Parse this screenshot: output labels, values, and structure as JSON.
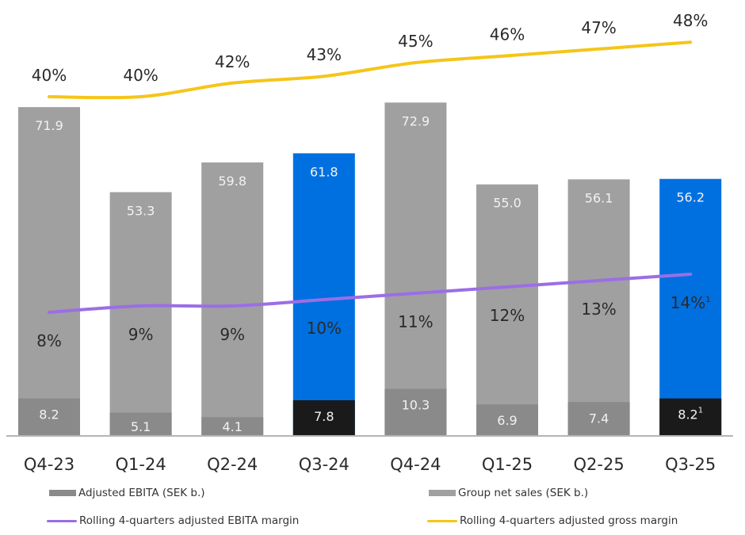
{
  "chart_data": {
    "type": "bar",
    "title": "",
    "xlabel": "",
    "ylabel": "",
    "ylim": [
      0,
      75
    ],
    "grid": false,
    "categories": [
      "Q4-23",
      "Q1-24",
      "Q2-24",
      "Q3-24",
      "Q4-24",
      "Q1-25",
      "Q2-25",
      "Q3-25"
    ],
    "highlight": [
      false,
      false,
      false,
      true,
      false,
      false,
      false,
      true
    ],
    "series": [
      {
        "name": "Group net sales (SEK b.)",
        "kind": "bar",
        "values": [
          71.9,
          53.3,
          59.8,
          61.8,
          72.9,
          55.0,
          56.1,
          56.2
        ],
        "labels": [
          "71.9",
          "53.3",
          "59.8",
          "61.8",
          "72.9",
          "55.0",
          "56.1",
          "56.2"
        ],
        "color": "#a0a0a0",
        "highlight_color": "#0070e0"
      },
      {
        "name": "Adjusted EBITA (SEK b.)",
        "kind": "bar",
        "values": [
          8.2,
          5.1,
          4.1,
          7.8,
          10.3,
          6.9,
          7.4,
          8.2
        ],
        "labels": [
          "8.2",
          "5.1",
          "4.1",
          "7.8",
          "10.3",
          "6.9",
          "7.4",
          "8.2"
        ],
        "footnotes": [
          "",
          "",
          "",
          "",
          "",
          "",
          "",
          "1"
        ],
        "color": "#8a8a8a",
        "highlight_color": "#1a1a1a"
      },
      {
        "name": "Rolling 4-quarters adjusted EBITA margin",
        "kind": "line",
        "unit": "%",
        "values": [
          8,
          9,
          9,
          10,
          11,
          12,
          13,
          14
        ],
        "labels": [
          "8%",
          "9%",
          "9%",
          "10%",
          "11%",
          "12%",
          "13%",
          "14%"
        ],
        "footnotes": [
          "",
          "",
          "",
          "",
          "",
          "",
          "",
          "1"
        ],
        "color": "#9b6ee6"
      },
      {
        "name": "Rolling 4-quarters adjusted gross margin",
        "kind": "line",
        "unit": "%",
        "values": [
          40,
          40,
          42,
          43,
          45,
          46,
          47,
          48
        ],
        "labels": [
          "40%",
          "40%",
          "42%",
          "43%",
          "45%",
          "46%",
          "47%",
          "48%"
        ],
        "color": "#f5c518"
      }
    ],
    "legend": {
      "placement": "bottom",
      "items": [
        {
          "label": "Adjusted EBITA (SEK b.)",
          "symbol": "bar",
          "color": "#8a8a8a"
        },
        {
          "label": "Group net sales (SEK b.)",
          "symbol": "bar",
          "color": "#a0a0a0"
        },
        {
          "label": "Rolling 4-quarters adjusted EBITA margin",
          "symbol": "line",
          "color": "#9b6ee6"
        },
        {
          "label": "Rolling 4-quarters adjusted gross margin",
          "symbol": "line",
          "color": "#f5c518"
        }
      ]
    }
  }
}
